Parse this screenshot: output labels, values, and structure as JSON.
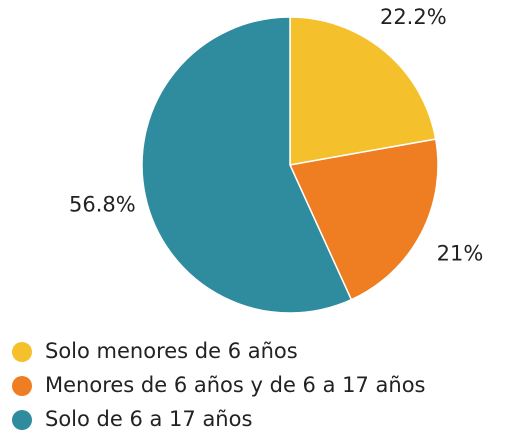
{
  "chart_data": {
    "type": "pie",
    "categories": [
      "Solo menores de 6 años",
      "Menores de 6 años y de 6 a 17 años",
      "Solo de 6 a 17 años"
    ],
    "values": [
      22.2,
      21,
      56.8
    ],
    "value_labels": [
      "22.2%",
      "21%",
      "56.8%"
    ],
    "colors": [
      "#f4c02b",
      "#ef7d22",
      "#2f8b9e"
    ],
    "legend": "bottom"
  }
}
